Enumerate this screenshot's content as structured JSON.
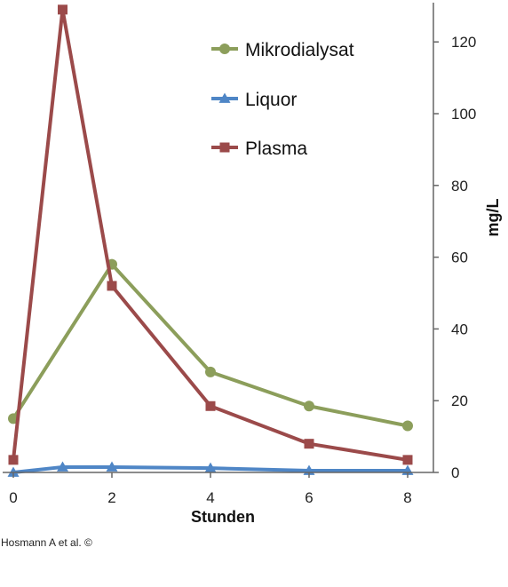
{
  "chart_data": {
    "type": "line",
    "xlabel": "Stunden",
    "ylabel": "mg/L",
    "xlim": [
      0,
      8
    ],
    "ylim": [
      0,
      130
    ],
    "x_ticks": [
      "0",
      "2",
      "4",
      "6",
      "8"
    ],
    "y_ticks": [
      "0",
      "20",
      "40",
      "60",
      "80",
      "100",
      "120"
    ],
    "y_axis_side": "right",
    "legend_position": "top-right",
    "grid": false,
    "series": [
      {
        "name": "Mikrodialysat",
        "color": "#8c9e5b",
        "marker": "circle",
        "x": [
          0,
          2,
          4,
          6,
          8
        ],
        "y": [
          15,
          58,
          28,
          18.5,
          13
        ]
      },
      {
        "name": "Liquor",
        "color": "#4f86c6",
        "marker": "triangle",
        "x": [
          0,
          1,
          2,
          4,
          6,
          8
        ],
        "y": [
          0,
          1.5,
          1.5,
          1.2,
          0.5,
          0.5
        ]
      },
      {
        "name": "Plasma",
        "color": "#9b4a4a",
        "marker": "square",
        "x": [
          0,
          1,
          2,
          4,
          6,
          8
        ],
        "y": [
          3.5,
          129,
          52,
          18.5,
          8,
          3.5
        ]
      }
    ]
  },
  "credit": "Hosmann A et al. ©"
}
